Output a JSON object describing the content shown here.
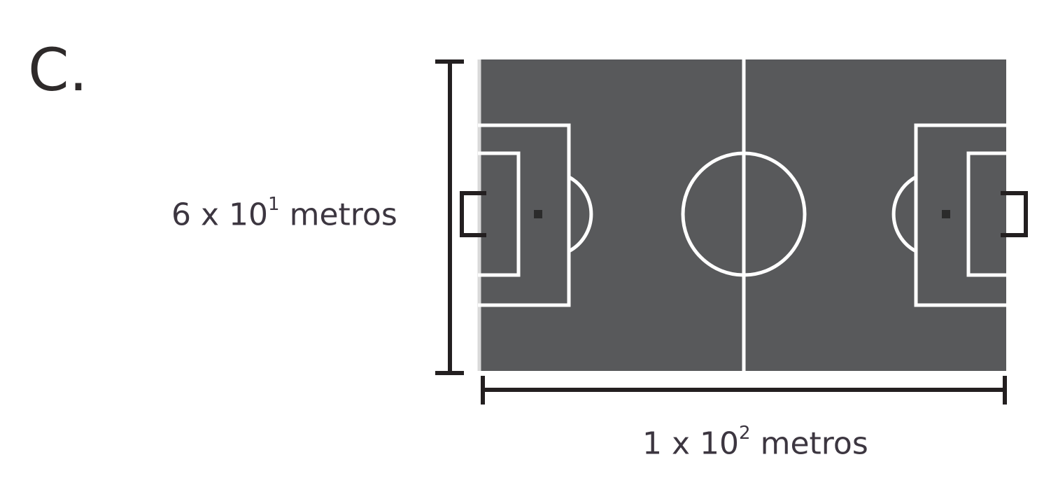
{
  "option_letter": "C.",
  "height_label": {
    "mantissa": "6",
    "times": "x",
    "base": "10",
    "exponent": "1",
    "unit": "metros"
  },
  "width_label": {
    "mantissa": "1",
    "times": "x",
    "base": "10",
    "exponent": "2",
    "unit": "metros"
  },
  "colors": {
    "pitch_fill": "#58595b",
    "pitch_lines": "#ffffff",
    "dimension_lines": "#231f20",
    "penalty_spot": "#2b2b2b"
  }
}
